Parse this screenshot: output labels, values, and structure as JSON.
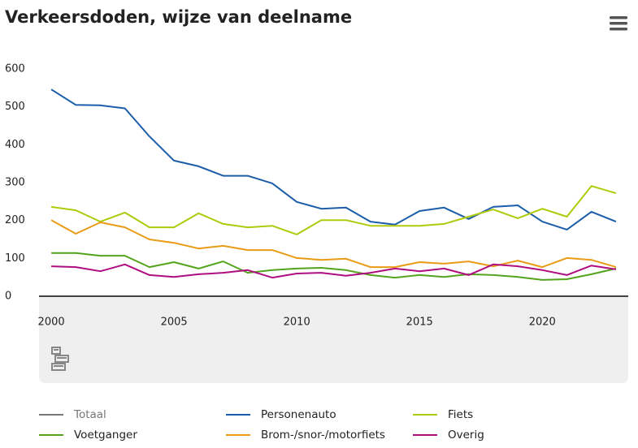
{
  "chart_data": {
    "type": "line",
    "title": "Verkeersdoden, wijze van deelname",
    "x": [
      2000,
      2001,
      2002,
      2003,
      2004,
      2005,
      2006,
      2007,
      2008,
      2009,
      2010,
      2011,
      2012,
      2013,
      2014,
      2015,
      2016,
      2017,
      2018,
      2019,
      2020,
      2021,
      2022,
      2023
    ],
    "xlim": [
      1999.5,
      2023.5
    ],
    "xticks": [
      2000,
      2005,
      2010,
      2015,
      2020
    ],
    "ylim": [
      0,
      600
    ],
    "yticks": [
      0,
      100,
      200,
      300,
      400,
      500,
      600
    ],
    "grid": false,
    "series": [
      {
        "name": "Totaal",
        "color": "#6e6e6e",
        "hidden": true,
        "values": [
          null,
          null,
          null,
          null,
          null,
          null,
          null,
          null,
          null,
          null,
          null,
          null,
          null,
          null,
          null,
          null,
          null,
          null,
          null,
          null,
          null,
          null,
          null,
          null
        ]
      },
      {
        "name": "Personenauto",
        "color": "#1b5da8",
        "values": [
          546,
          505,
          504,
          496,
          422,
          358,
          343,
          318,
          318,
          298,
          249,
          231,
          234,
          197,
          189,
          225,
          234,
          204,
          236,
          240,
          197,
          176,
          223,
          197
        ]
      },
      {
        "name": "Fiets",
        "color": "#afca0b",
        "values": [
          236,
          227,
          197,
          221,
          182,
          182,
          219,
          191,
          182,
          186,
          163,
          201,
          201,
          186,
          186,
          186,
          191,
          210,
          229,
          206,
          231,
          210,
          291,
          272
        ]
      },
      {
        "name": "Voetganger",
        "color": "#53a31d",
        "values": [
          114,
          114,
          107,
          107,
          77,
          90,
          73,
          92,
          62,
          69,
          73,
          75,
          69,
          56,
          49,
          56,
          51,
          58,
          56,
          51,
          43,
          45,
          58,
          73
        ]
      },
      {
        "name": "Brom-/snor-/motorfiets",
        "color": "#e99b16",
        "values": [
          201,
          165,
          195,
          182,
          150,
          141,
          126,
          133,
          122,
          122,
          101,
          96,
          99,
          77,
          77,
          90,
          86,
          92,
          79,
          94,
          77,
          101,
          96,
          77
        ]
      },
      {
        "name": "Overig",
        "color": "#af0e80",
        "values": [
          79,
          77,
          66,
          84,
          56,
          51,
          58,
          62,
          69,
          49,
          60,
          62,
          54,
          62,
          73,
          66,
          73,
          56,
          84,
          79,
          69,
          56,
          81,
          71
        ]
      }
    ]
  }
}
